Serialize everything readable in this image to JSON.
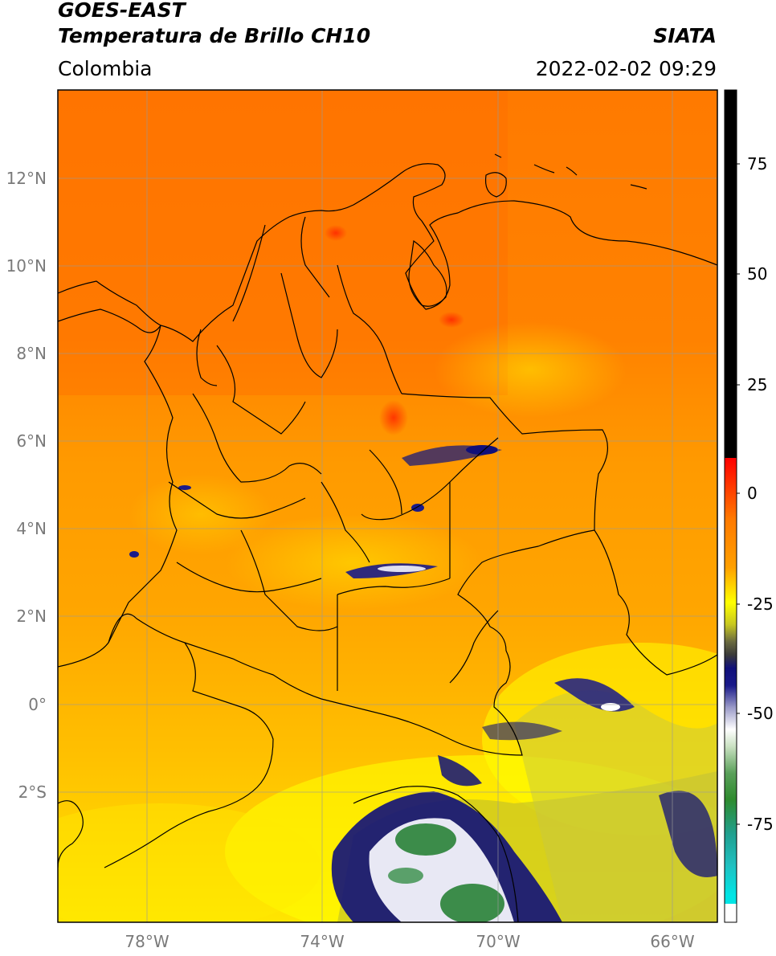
{
  "header": {
    "satellite": "GOES-EAST",
    "product": "Temperatura de Brillo CH10",
    "region": "Colombia",
    "agency": "SIATA",
    "datetime": "2022-02-02 09:29"
  },
  "map": {
    "lat_ticks": [
      "12°N",
      "10°N",
      "8°N",
      "6°N",
      "4°N",
      "2°N",
      "0°",
      "2°S"
    ],
    "lon_ticks": [
      "78°W",
      "74°W",
      "70°W",
      "66°W"
    ]
  },
  "colorbar": {
    "ticks": [
      "75",
      "50",
      "25",
      "0",
      "-25",
      "-50",
      "-75"
    ],
    "colors": {
      "black": "#000000",
      "red": "#ff0000",
      "orange": "#ff8c00",
      "yellow": "#ffff00",
      "olive": "#8a8a40",
      "navy": "#0a0a8a",
      "white": "#ffffff",
      "green": "#2e8b2e",
      "teal": "#20b2aa",
      "cyan": "#00e5e5"
    }
  }
}
